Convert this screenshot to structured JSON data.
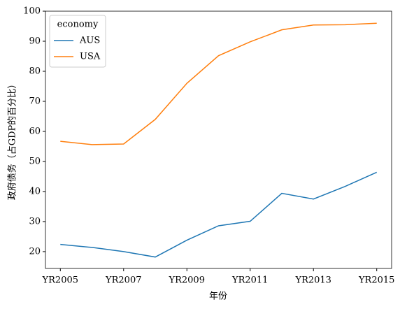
{
  "chart_data": {
    "type": "line",
    "x_label": "年份",
    "y_label": "政府债务（占GDP的百分比）",
    "categories": [
      "YR2005",
      null,
      "YR2007",
      null,
      "YR2009",
      null,
      "YR2011",
      null,
      "YR2013",
      null,
      "YR2015"
    ],
    "series": [
      {
        "name": "AUS",
        "color": "#1f77b4",
        "values": [
          22.4,
          21.4,
          20.0,
          18.2,
          23.8,
          28.6,
          30.1,
          39.4,
          37.5,
          41.7,
          46.4
        ]
      },
      {
        "name": "USA",
        "color": "#ff7f0e",
        "values": [
          56.7,
          55.6,
          55.8,
          64.0,
          76.0,
          85.2,
          89.8,
          93.8,
          95.4,
          95.5,
          96.0
        ]
      }
    ],
    "legend_title": "economy",
    "legend_position": "upper left",
    "ylim": [
      14.4,
      100
    ],
    "yticks": [
      20,
      30,
      40,
      50,
      60,
      70,
      80,
      90,
      100
    ],
    "grid": false
  }
}
